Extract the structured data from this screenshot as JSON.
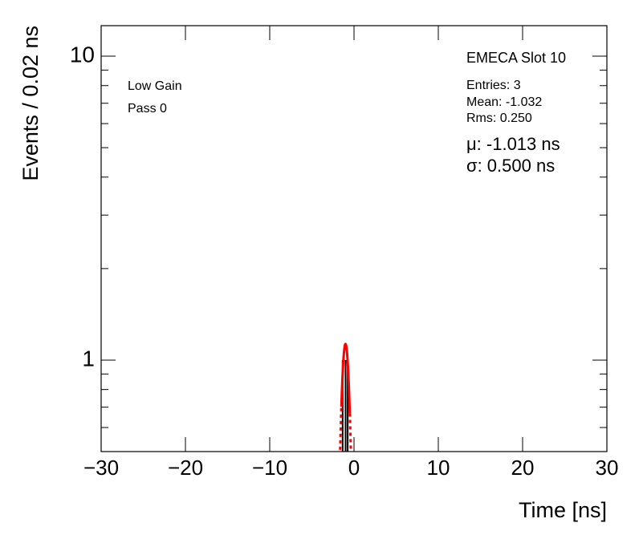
{
  "chart_data": {
    "type": "histogram-fit",
    "title": "EMECA Slot 10",
    "annotations": [
      "Low Gain",
      "Pass 0"
    ],
    "stats": [
      "Entries: 3",
      "Mean: -1.032",
      "Rms: 0.250"
    ],
    "fit_labels": [
      "μ: -1.013 ns",
      "σ: 0.500 ns"
    ],
    "x_label": "Time [ns]",
    "y_label": "Events / 0.02 ns",
    "x": [
      -1.35,
      -1.0,
      -0.75
    ],
    "values": [
      1,
      1,
      1
    ],
    "color": "#000000",
    "fit": {
      "color": "#ff0000",
      "amplitude": 1.13,
      "mean": -1.013,
      "sigma": 0.5,
      "range": [
        -1.5,
        -0.5
      ]
    },
    "xlim": [
      -30,
      30
    ],
    "ylim": [
      0.5,
      12.6
    ],
    "yscale": "log",
    "xticks": [
      {
        "value": -30,
        "label": "−30"
      },
      {
        "value": -20,
        "label": "−20"
      },
      {
        "value": -10,
        "label": "−10"
      },
      0,
      10,
      20,
      30
    ],
    "yticks": [
      1,
      10
    ],
    "yminorticks": [
      0.6,
      0.7,
      0.8,
      0.9,
      2,
      3,
      4,
      5,
      6,
      7,
      8,
      9
    ]
  }
}
